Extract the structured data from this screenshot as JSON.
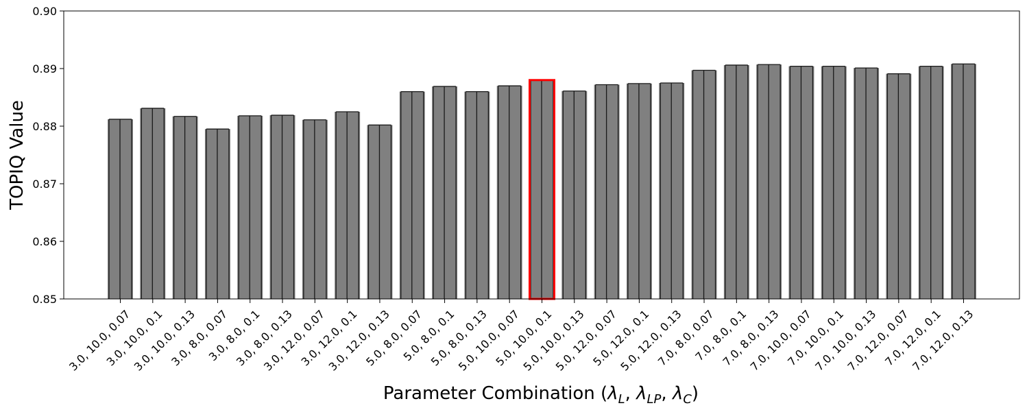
{
  "chart_data": {
    "type": "bar",
    "title": "",
    "xlabel": "Parameter Combination (λ_L, λ_LP, λ_C)",
    "xlabel_parts": {
      "prefix": "Parameter Combination (",
      "sym1": "λ",
      "sub1": "L",
      "sep1": ", ",
      "sym2": "λ",
      "sub2": "LP",
      "sep2": ", ",
      "sym3": "λ",
      "sub3": "C",
      "suffix": ")"
    },
    "ylabel": "TOPIQ Value",
    "ylim": [
      0.85,
      0.9
    ],
    "yticks": [
      "0.85",
      "0.86",
      "0.87",
      "0.88",
      "0.89",
      "0.90"
    ],
    "grid": false,
    "bar_color": "#808080",
    "edge_color": "#000000",
    "highlight_color": "#ff0000",
    "highlight_index": 13,
    "categories": [
      "3.0, 10.0, 0.07",
      "3.0, 10.0, 0.1",
      "3.0, 10.0, 0.13",
      "3.0, 8.0, 0.07",
      "3.0, 8.0, 0.1",
      "3.0, 8.0, 0.13",
      "3.0, 12.0, 0.07",
      "3.0, 12.0, 0.1",
      "3.0, 12.0, 0.13",
      "5.0, 8.0, 0.07",
      "5.0, 8.0, 0.1",
      "5.0, 8.0, 0.13",
      "5.0, 10.0, 0.07",
      "5.0, 10.0, 0.1",
      "5.0, 10.0, 0.13",
      "5.0, 12.0, 0.07",
      "5.0, 12.0, 0.1",
      "5.0, 12.0, 0.13",
      "7.0, 8.0, 0.07",
      "7.0, 8.0, 0.1",
      "7.0, 8.0, 0.13",
      "7.0, 10.0, 0.07",
      "7.0, 10.0, 0.1",
      "7.0, 10.0, 0.13",
      "7.0, 12.0, 0.07",
      "7.0, 12.0, 0.1",
      "7.0, 12.0, 0.13"
    ],
    "values": [
      0.8812,
      0.8831,
      0.8817,
      0.8795,
      0.8818,
      0.8819,
      0.8811,
      0.8825,
      0.8802,
      0.886,
      0.8869,
      0.886,
      0.887,
      0.888,
      0.8861,
      0.8872,
      0.8874,
      0.8875,
      0.8897,
      0.8906,
      0.8907,
      0.8904,
      0.8904,
      0.8901,
      0.8891,
      0.8904,
      0.8908
    ]
  }
}
